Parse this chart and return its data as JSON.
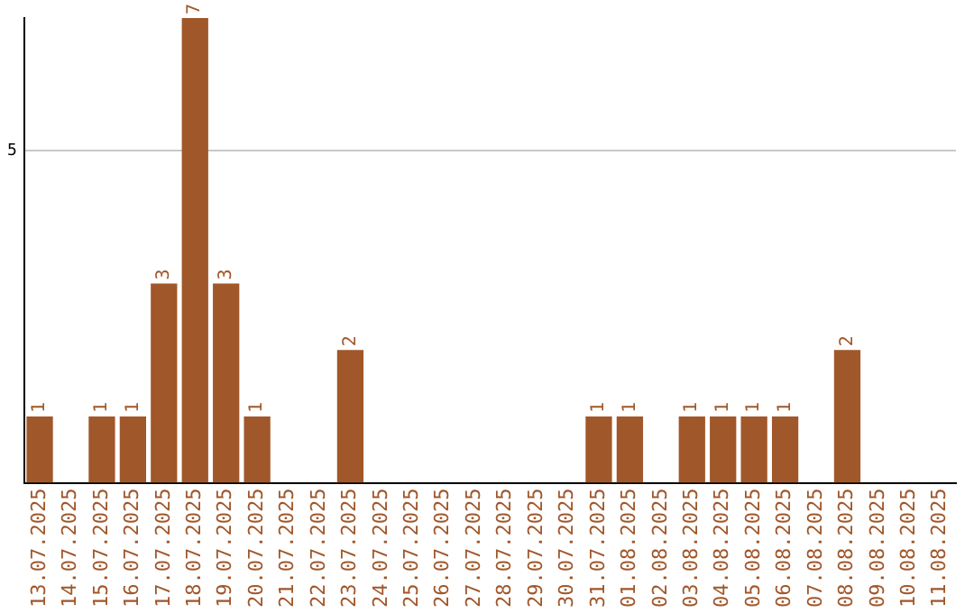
{
  "chart_data": {
    "type": "bar",
    "categories": [
      "13.07.2025",
      "14.07.2025",
      "15.07.2025",
      "16.07.2025",
      "17.07.2025",
      "18.07.2025",
      "19.07.2025",
      "20.07.2025",
      "21.07.2025",
      "22.07.2025",
      "23.07.2025",
      "24.07.2025",
      "25.07.2025",
      "26.07.2025",
      "27.07.2025",
      "28.07.2025",
      "29.07.2025",
      "30.07.2025",
      "31.07.2025",
      "01.08.2025",
      "02.08.2025",
      "03.08.2025",
      "04.08.2025",
      "05.08.2025",
      "06.08.2025",
      "07.08.2025",
      "08.08.2025",
      "09.08.2025",
      "10.08.2025",
      "11.08.2025"
    ],
    "values": [
      1,
      0,
      1,
      1,
      3,
      7,
      3,
      1,
      0,
      0,
      2,
      0,
      0,
      0,
      0,
      0,
      0,
      0,
      1,
      1,
      0,
      1,
      1,
      1,
      1,
      0,
      2,
      0,
      0,
      0
    ],
    "value_labels": [
      "1",
      null,
      "1",
      "1",
      "3",
      "7",
      "3",
      "1",
      null,
      null,
      "2",
      null,
      null,
      null,
      null,
      null,
      null,
      null,
      "1",
      "1",
      null,
      "1",
      "1",
      "1",
      "1",
      null,
      "2",
      null,
      null,
      null
    ],
    "color": "#a0572a",
    "ylim": [
      0,
      7
    ],
    "yticks": [
      5
    ],
    "grid": "y",
    "legend": false
  }
}
